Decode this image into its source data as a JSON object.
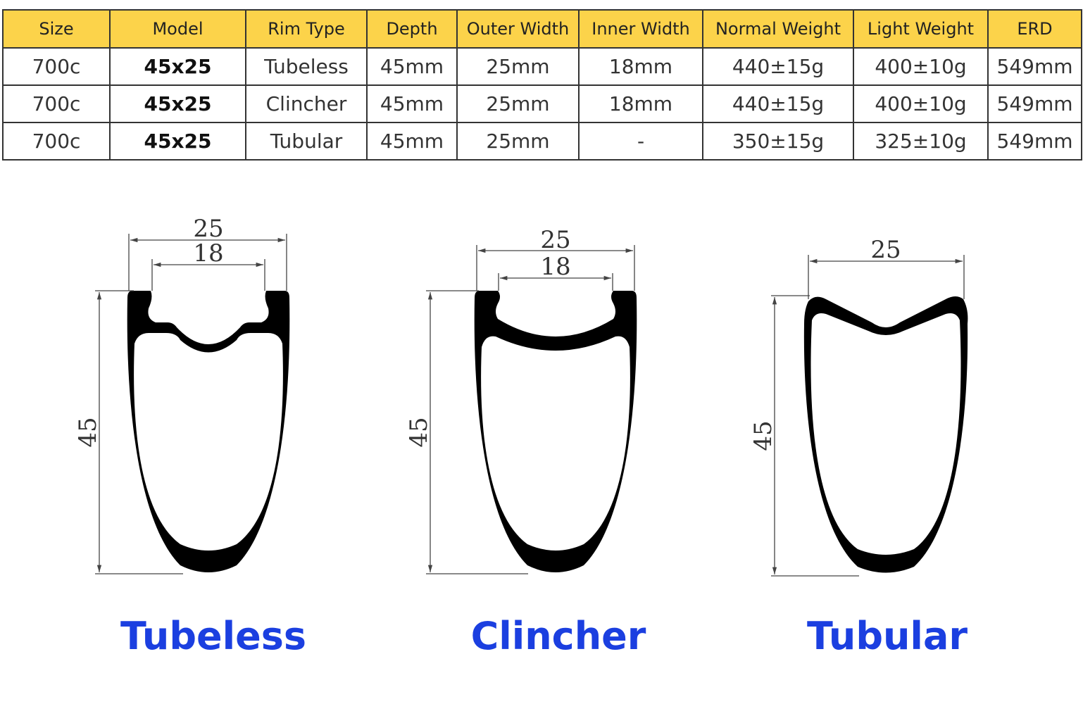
{
  "table": {
    "header": [
      "Size",
      "Model",
      "Rim Type",
      "Depth",
      "Outer Width",
      "Inner Width",
      "Normal Weight",
      "Light Weight",
      "ERD"
    ],
    "rows": [
      [
        "700c",
        "45x25",
        "Tubeless",
        "45mm",
        "25mm",
        "18mm",
        "440±15g",
        "400±10g",
        "549mm"
      ],
      [
        "700c",
        "45x25",
        "Clincher",
        "45mm",
        "25mm",
        "18mm",
        "440±15g",
        "400±10g",
        "549mm"
      ],
      [
        "700c",
        "45x25",
        "Tubular",
        "45mm",
        "25mm",
        "-",
        "350±15g",
        "325±10g",
        "549mm"
      ]
    ]
  },
  "diagrams": [
    {
      "outer": "25",
      "inner": "18",
      "depth": "45",
      "label": "Tubeless"
    },
    {
      "outer": "25",
      "inner": "18",
      "depth": "45",
      "label": "Clincher"
    },
    {
      "outer": "25",
      "depth": "45",
      "label": "Tubular"
    }
  ]
}
